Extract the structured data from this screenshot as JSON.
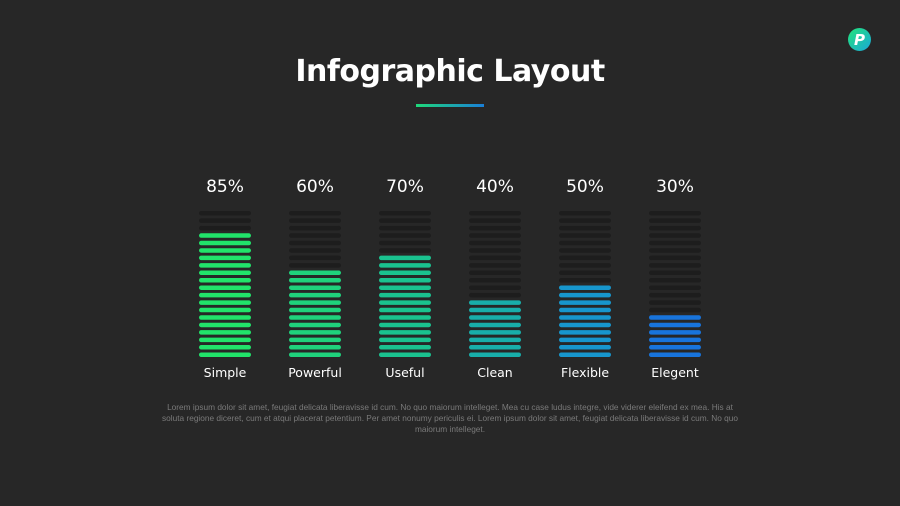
{
  "logo": {
    "letter": "P",
    "icon": "brand-logo-icon"
  },
  "title": "Infographic Layout",
  "chart_data": {
    "type": "bar",
    "categories": [
      "Simple",
      "Powerful",
      "Useful",
      "Clean",
      "Flexible",
      "Elegent"
    ],
    "values": [
      85,
      60,
      70,
      40,
      50,
      30
    ],
    "value_labels": [
      "85%",
      "60%",
      "70%",
      "40%",
      "50%",
      "30%"
    ],
    "colors": [
      "#21e36a",
      "#1fd27c",
      "#1ac28f",
      "#18aeaa",
      "#1796cd",
      "#1874dc"
    ],
    "track_color": "#1d1d1d",
    "ylim": [
      0,
      100
    ],
    "segments": 20,
    "title": "",
    "xlabel": "",
    "ylabel": "",
    "legend": "none",
    "grid": false
  },
  "footer_text": "Lorem ipsum dolor sit amet, feugiat delicata liberavisse id cum. No quo maiorum intelleget. Mea cu case ludus integre, vide viderer eleifend ex mea. His at soluta regione diceret, cum et atqui placerat petentium. Per amet nonumy periculis ei. Lorem ipsum dolor sit amet, feugiat delicata liberavisse id cum. No quo maiorum intelleget."
}
